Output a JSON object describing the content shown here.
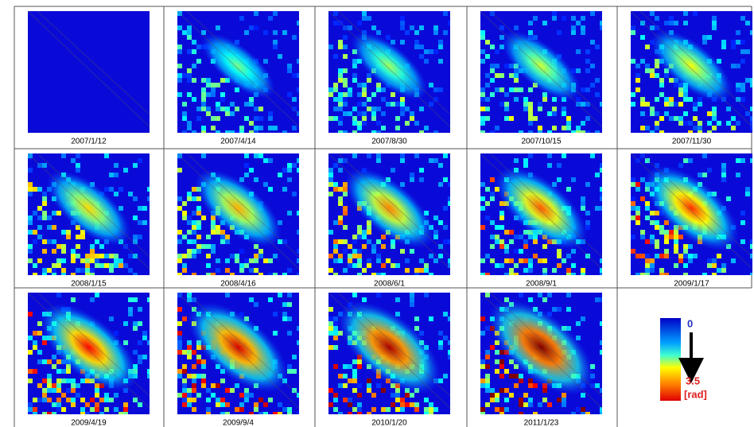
{
  "panels": [
    {
      "date": "2007/1/12"
    },
    {
      "date": "2007/4/14"
    },
    {
      "date": "2007/8/30"
    },
    {
      "date": "2007/10/15"
    },
    {
      "date": "2007/11/30"
    },
    {
      "date": "2008/1/15"
    },
    {
      "date": "2008/4/16"
    },
    {
      "date": "2008/6/1"
    },
    {
      "date": "2008/9/1"
    },
    {
      "date": "2009/1/17"
    },
    {
      "date": "2009/4/19"
    },
    {
      "date": "2009/9/4"
    },
    {
      "date": "2010/1/20"
    },
    {
      "date": "2011/1/23"
    }
  ],
  "legend": {
    "min": 0,
    "max": 3.5,
    "unit": "[rad]"
  }
}
